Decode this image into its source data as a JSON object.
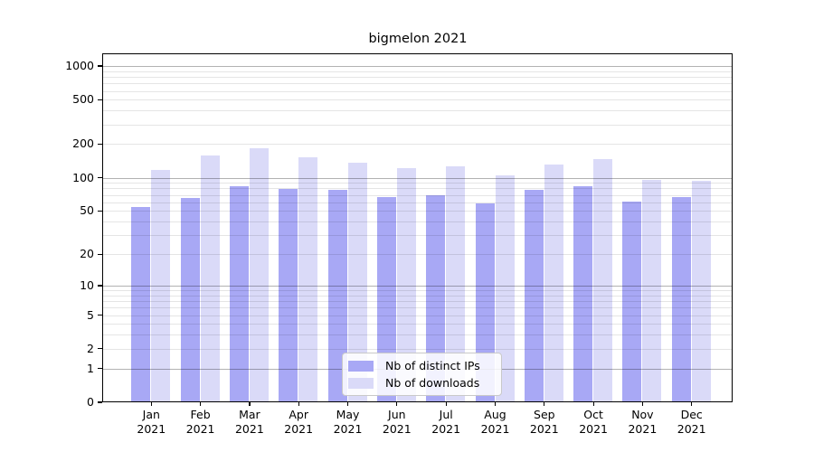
{
  "title": "bigmelon 2021",
  "colors": {
    "ips_bar": "#a8a8f5",
    "downloads_bar": "#dadaf8",
    "grid_major": "rgba(0,0,0,0.30)",
    "grid_minor": "rgba(0,0,0,0.10)",
    "axis": "#000000",
    "background": "#ffffff"
  },
  "y_axis": {
    "tick_labels": [
      "1000",
      "500",
      "200",
      "100",
      "50",
      "20",
      "10",
      "5",
      "2",
      "1",
      "0"
    ]
  },
  "legend": {
    "items": [
      "Nb of distinct IPs",
      "Nb of downloads"
    ]
  },
  "chart_data": {
    "type": "bar",
    "title": "bigmelon 2021",
    "categories": [
      "Jan 2021",
      "Feb 2021",
      "Mar 2021",
      "Apr 2021",
      "May 2021",
      "Jun 2021",
      "Jul 2021",
      "Aug 2021",
      "Sep 2021",
      "Oct 2021",
      "Nov 2021",
      "Dec 2021"
    ],
    "series": [
      {
        "name": "Nb of distinct IPs",
        "color": "#a8a8f5",
        "values": [
          54,
          66,
          83,
          79,
          77,
          67,
          70,
          58,
          77,
          84,
          61,
          67
        ]
      },
      {
        "name": "Nb of downloads",
        "color": "#dadaf8",
        "values": [
          117,
          157,
          185,
          153,
          137,
          121,
          126,
          104,
          131,
          148,
          95,
          94
        ]
      }
    ],
    "xlabel": "",
    "ylabel": "",
    "y_scale": "log10(1+x)",
    "y_ticks": [
      0,
      1,
      2,
      5,
      10,
      20,
      50,
      100,
      200,
      500,
      1000
    ],
    "y_major_gridlines": [
      1,
      10,
      100,
      1000
    ],
    "ylim": [
      0,
      1290
    ],
    "grid": true,
    "legend_position": "lower center"
  }
}
